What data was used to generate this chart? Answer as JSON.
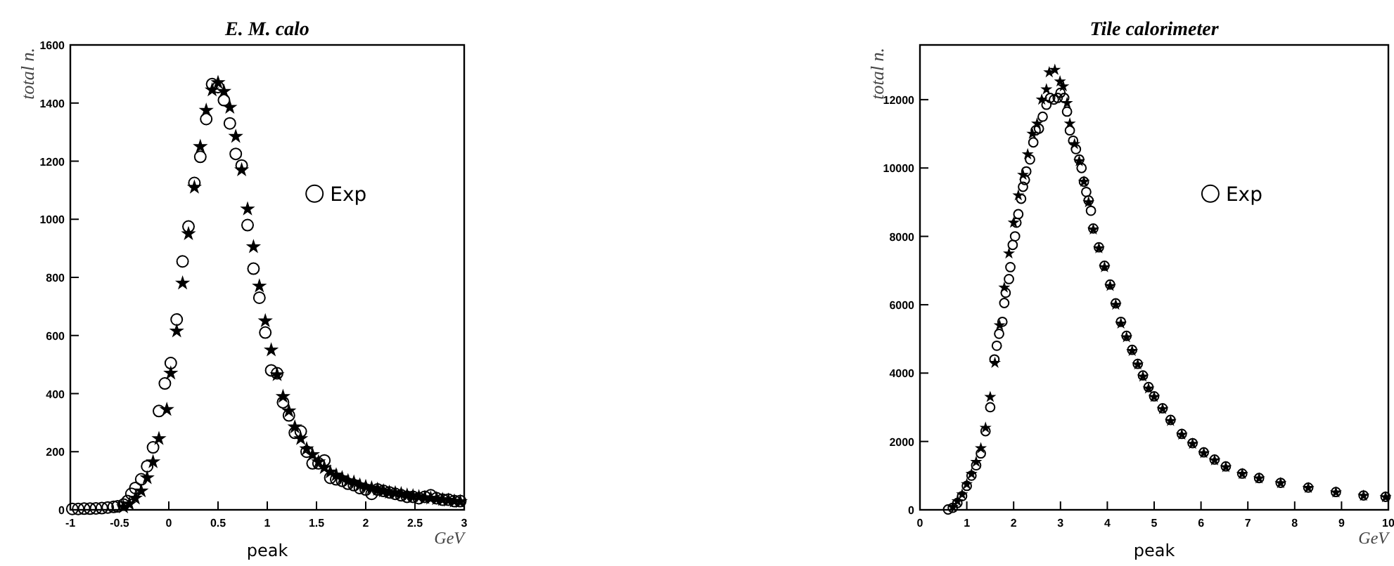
{
  "chart_data": [
    {
      "type": "scatter",
      "title": "E. M. calo",
      "xlabel": "peak",
      "ylabel": "total n.",
      "annotations": [
        "GeV"
      ],
      "xlim": [
        -1,
        3
      ],
      "ylim": [
        0,
        1600
      ],
      "xticks": [
        -1,
        -0.5,
        0,
        0.5,
        1,
        1.5,
        2,
        2.5,
        3
      ],
      "yticks": [
        0,
        200,
        400,
        600,
        800,
        1000,
        1200,
        1400,
        1600
      ],
      "legend": "right",
      "grid": false,
      "series": [
        {
          "name": "Exp",
          "color": "#000000",
          "marker": "circle",
          "x": [
            -0.98,
            -0.92,
            -0.86,
            -0.8,
            -0.74,
            -0.68,
            -0.62,
            -0.56,
            -0.52,
            -0.46,
            -0.42,
            -0.38,
            -0.34,
            -0.28,
            -0.22,
            -0.16,
            -0.1,
            -0.04,
            0.02,
            0.08,
            0.14,
            0.2,
            0.26,
            0.32,
            0.38,
            0.44,
            0.5,
            0.56,
            0.62,
            0.68,
            0.74,
            0.8,
            0.86,
            0.92,
            0.98,
            1.04,
            1.1,
            1.16,
            1.22,
            1.28,
            1.34,
            1.4,
            1.46,
            1.52,
            1.58,
            1.64,
            1.7,
            1.76,
            1.82,
            1.88,
            1.94,
            2,
            2.06,
            2.12,
            2.18,
            2.24,
            2.3,
            2.36,
            2.42,
            2.48,
            2.54,
            2.6,
            2.66,
            2.72,
            2.78,
            2.84,
            2.9,
            2.96
          ],
          "values": [
            3,
            3,
            4,
            4,
            5,
            6,
            8,
            10,
            12,
            18,
            30,
            55,
            75,
            105,
            150,
            215,
            340,
            435,
            505,
            655,
            855,
            975,
            1125,
            1215,
            1345,
            1465,
            1455,
            1410,
            1330,
            1225,
            1185,
            980,
            830,
            730,
            610,
            480,
            470,
            370,
            325,
            265,
            270,
            200,
            160,
            160,
            170,
            110,
            105,
            100,
            90,
            85,
            75,
            70,
            55,
            70,
            65,
            60,
            55,
            50,
            45,
            45,
            40,
            45,
            50,
            40,
            35,
            35,
            30,
            30
          ]
        },
        {
          "color": "#000000",
          "marker": "star",
          "x": [
            -0.46,
            -0.4,
            -0.34,
            -0.28,
            -0.22,
            -0.16,
            -0.1,
            -0.02,
            0.02,
            0.08,
            0.14,
            0.2,
            0.26,
            0.32,
            0.38,
            0.44,
            0.5,
            0.56,
            0.62,
            0.68,
            0.74,
            0.8,
            0.86,
            0.92,
            0.98,
            1.04,
            1.1,
            1.16,
            1.22,
            1.28,
            1.34,
            1.4,
            1.46,
            1.52,
            1.58,
            1.64,
            1.7,
            1.76,
            1.82,
            1.88,
            1.94,
            2,
            2.06,
            2.12,
            2.18,
            2.24,
            2.3,
            2.36,
            2.42,
            2.48,
            2.54,
            2.6,
            2.66,
            2.72,
            2.78,
            2.84,
            2.9,
            2.96
          ],
          "values": [
            10,
            20,
            40,
            65,
            110,
            165,
            245,
            345,
            470,
            615,
            780,
            950,
            1110,
            1250,
            1375,
            1445,
            1470,
            1440,
            1385,
            1285,
            1170,
            1035,
            905,
            770,
            650,
            550,
            465,
            390,
            340,
            285,
            245,
            210,
            190,
            165,
            145,
            130,
            120,
            110,
            100,
            95,
            85,
            80,
            75,
            70,
            65,
            60,
            58,
            55,
            50,
            48,
            45,
            42,
            40,
            38,
            35,
            33,
            30,
            28
          ]
        }
      ]
    },
    {
      "type": "scatter",
      "title": "Tile calorimeter",
      "xlabel": "peak",
      "ylabel": "total n.",
      "annotations": [
        "GeV"
      ],
      "xlim": [
        0,
        10
      ],
      "ylim": [
        0,
        13600
      ],
      "xticks": [
        0,
        1,
        2,
        3,
        4,
        5,
        6,
        7,
        8,
        9,
        10
      ],
      "yticks": [
        0,
        2000,
        4000,
        6000,
        8000,
        10000,
        12000
      ],
      "legend": "right",
      "grid": false,
      "series": [
        {
          "name": "Exp",
          "color": "#000000",
          "marker": "circle",
          "x": [
            0.6,
            0.7,
            0.8,
            0.9,
            1,
            1.1,
            1.2,
            1.3,
            1.4,
            1.5,
            1.59,
            1.64,
            1.69,
            1.76,
            1.8,
            1.83,
            1.9,
            1.93,
            1.98,
            2.03,
            2.06,
            2.1,
            2.16,
            2.2,
            2.24,
            2.27,
            2.35,
            2.42,
            2.47,
            2.54,
            2.62,
            2.7,
            2.78,
            2.86,
            2.94,
            3,
            3.08,
            3.14,
            3.2,
            3.27,
            3.33,
            3.4,
            3.45,
            3.5,
            3.55,
            3.6,
            3.65,
            3.7,
            3.82,
            3.94,
            4.06,
            4.18,
            4.29,
            4.41,
            4.53,
            4.65,
            4.76,
            4.88,
            5,
            5.18,
            5.35,
            5.59,
            5.82,
            6.06,
            6.29,
            6.53,
            6.88,
            7.24,
            7.7,
            8.29,
            8.88,
            9.47,
            9.94
          ],
          "values": [
            10,
            60,
            200,
            400,
            700,
            1000,
            1300,
            1650,
            2300,
            3000,
            4400,
            4800,
            5150,
            5500,
            6050,
            6350,
            6750,
            7100,
            7750,
            8000,
            8400,
            8650,
            9100,
            9450,
            9650,
            9900,
            10250,
            10750,
            11100,
            11150,
            11500,
            11850,
            12050,
            12000,
            12050,
            12200,
            12050,
            11650,
            11100,
            10800,
            10550,
            10250,
            10000,
            9600,
            9300,
            9050,
            8750,
            8230,
            7680,
            7140,
            6590,
            6040,
            5500,
            5090,
            4680,
            4270,
            3930,
            3590,
            3320,
            2970,
            2630,
            2220,
            1950,
            1680,
            1470,
            1270,
            1060,
            930,
            790,
            650,
            520,
            420,
            380
          ]
        },
        {
          "color": "#000000",
          "marker": "star",
          "x": [
            0.7,
            0.8,
            0.9,
            1,
            1.1,
            1.2,
            1.3,
            1.4,
            1.5,
            1.6,
            1.7,
            1.8,
            1.9,
            2,
            2.1,
            2.2,
            2.3,
            2.4,
            2.5,
            2.6,
            2.7,
            2.76,
            2.88,
            2.99,
            3.06,
            3.14,
            3.2,
            3.3,
            3.4,
            3.5,
            3.6,
            3.7,
            3.82,
            3.94,
            4.06,
            4.18,
            4.29,
            4.41,
            4.53,
            4.65,
            4.76,
            4.88,
            5,
            5.18,
            5.35,
            5.59,
            5.82,
            6.06,
            6.29,
            6.53,
            6.88,
            7.24,
            7.7,
            8.29,
            8.88,
            9.47,
            9.94
          ],
          "values": [
            80,
            250,
            450,
            750,
            1050,
            1400,
            1800,
            2400,
            3300,
            4300,
            5400,
            6500,
            7500,
            8400,
            9200,
            9800,
            10400,
            11000,
            11300,
            12000,
            12300,
            12800,
            12870,
            12530,
            12390,
            11900,
            11300,
            10700,
            10200,
            9600,
            9000,
            8200,
            7650,
            7100,
            6550,
            6000,
            5450,
            5050,
            4650,
            4250,
            3900,
            3550,
            3300,
            2950,
            2600,
            2200,
            1930,
            1660,
            1450,
            1250,
            1050,
            920,
            780,
            640,
            510,
            410,
            370
          ]
        }
      ]
    }
  ]
}
